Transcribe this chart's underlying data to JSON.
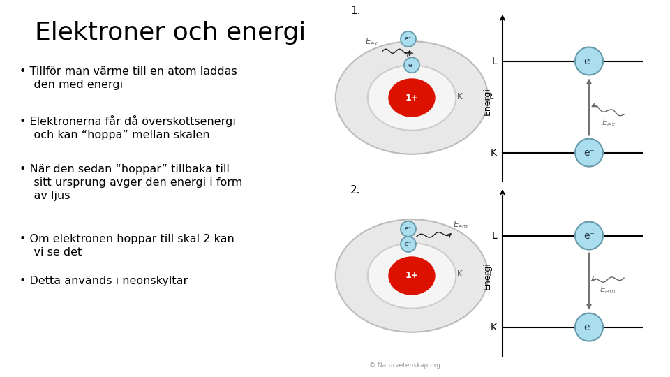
{
  "title": "Elektroner och energi",
  "title_fontsize": 26,
  "background_color": "#ffffff",
  "text_color": "#000000",
  "bullet_points": [
    "Tillför man värme till en atom laddas\n   den med energi",
    "Elektronerna får då överskottsenergi\n   och kan “hoppa” mellan skalen",
    "När den sedan “hoppar” tillbaka till\n   sitt ursprung avger den energi i form\n   av ljus",
    "Om elektronen hoppar till skal 2 kan\n   vi se det",
    "Detta används i neonskyltar"
  ],
  "copyright": "© Naturvetenskap.org",
  "nucleus_color": "#dd1100",
  "electron_fill": "#aaddee",
  "electron_edge": "#6699aa",
  "shell_outer_fill": "#eeeeee",
  "shell_outer_edge": "#cccccc",
  "shell_inner_fill": "#f8f8f8",
  "shell_inner_edge": "#bbbbbb",
  "arrow_color": "#222222",
  "energy_arrow_color": "#666666",
  "label_color": "#444444",
  "eex_color": "#888888",
  "eem_color": "#888888"
}
